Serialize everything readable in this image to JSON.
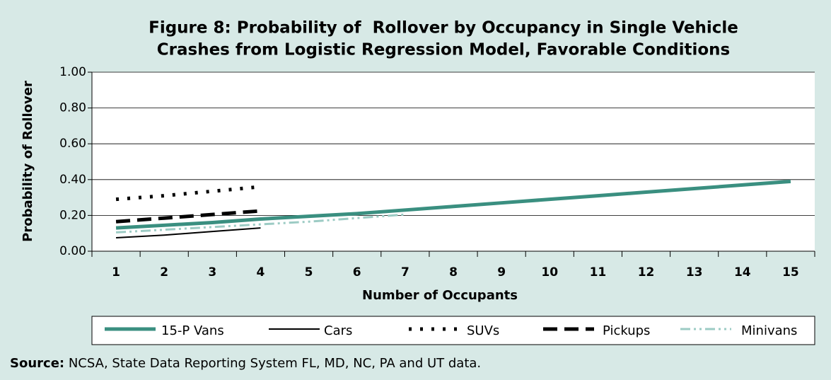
{
  "chart_data": {
    "type": "line",
    "title": [
      "Figure 8: Probability of  Rollover by Occupancy in Single Vehicle",
      "Crashes from Logistic Regression Model, Favorable Conditions"
    ],
    "xlabel": "Number of Occupants",
    "ylabel": "Probability of Rollover",
    "categories": [
      "1",
      "2",
      "3",
      "4",
      "5",
      "6",
      "7",
      "8",
      "9",
      "10",
      "11",
      "12",
      "13",
      "14",
      "15"
    ],
    "ylim": [
      0,
      1
    ],
    "yticks": [
      {
        "value": 0,
        "label": "0.00"
      },
      {
        "value": 0.2,
        "label": "0.20"
      },
      {
        "value": 0.4,
        "label": "0.40"
      },
      {
        "value": 0.6,
        "label": "0.60"
      },
      {
        "value": 0.8,
        "label": "0.80"
      },
      {
        "value": 1,
        "label": "1.00"
      }
    ],
    "grid": true,
    "series": [
      {
        "name": "15-P Vans",
        "color": "#3a8f80",
        "values": [
          0.13,
          0.145,
          0.16,
          0.18,
          0.195,
          0.21,
          0.23,
          0.25,
          0.27,
          0.29,
          0.31,
          0.33,
          0.35,
          0.37,
          0.39
        ]
      },
      {
        "name": "Cars",
        "color": "#000000",
        "values": [
          0.075,
          0.09,
          0.11,
          0.13,
          null,
          null,
          null,
          null,
          null,
          null,
          null,
          null,
          null,
          null,
          null
        ]
      },
      {
        "name": "SUVs",
        "color": "#000000",
        "values": [
          0.29,
          0.31,
          0.335,
          0.36,
          null,
          null,
          null,
          null,
          null,
          null,
          null,
          null,
          null,
          null,
          null
        ]
      },
      {
        "name": "Pickups",
        "color": "#000000",
        "values": [
          0.165,
          0.185,
          0.205,
          0.225,
          null,
          null,
          null,
          null,
          null,
          null,
          null,
          null,
          null,
          null,
          null
        ]
      },
      {
        "name": "Minivans",
        "color": "#9ccbc4",
        "values": [
          0.105,
          0.12,
          0.135,
          0.15,
          0.165,
          0.185,
          0.205,
          null,
          null,
          null,
          null,
          null,
          null,
          null,
          null
        ]
      }
    ],
    "source_label": "Source:",
    "source": "NCSA, State Data Reporting System FL, MD, NC, PA and UT data."
  }
}
